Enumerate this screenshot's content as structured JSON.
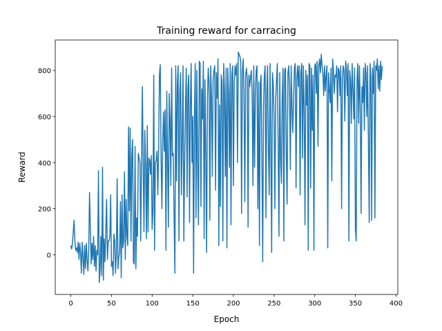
{
  "chart_data": {
    "type": "line",
    "title": "Training reward for carracing",
    "x_label": "Epoch",
    "y_label": "Reward",
    "color": "#1f77b4",
    "x": [
      0,
      1,
      2,
      3,
      4,
      5,
      6,
      7,
      8,
      9,
      10,
      11,
      12,
      13,
      14,
      15,
      16,
      17,
      18,
      19,
      20,
      21,
      22,
      23,
      24,
      25,
      26,
      27,
      28,
      29,
      30,
      31,
      32,
      33,
      34,
      35,
      36,
      37,
      38,
      39,
      40,
      41,
      42,
      43,
      44,
      45,
      46,
      47,
      48,
      49,
      50,
      51,
      52,
      53,
      54,
      55,
      56,
      57,
      58,
      59,
      60,
      61,
      62,
      63,
      64,
      65,
      66,
      67,
      68,
      69,
      70,
      71,
      72,
      73,
      74,
      75,
      76,
      77,
      78,
      79,
      80,
      81,
      82,
      83,
      84,
      85,
      86,
      87,
      88,
      89,
      90,
      91,
      92,
      93,
      94,
      95,
      96,
      97,
      98,
      99,
      100,
      101,
      102,
      103,
      104,
      105,
      106,
      107,
      108,
      109,
      110,
      111,
      112,
      113,
      114,
      115,
      116,
      117,
      118,
      119,
      120,
      121,
      122,
      123,
      124,
      125,
      126,
      127,
      128,
      129,
      130,
      131,
      132,
      133,
      134,
      135,
      136,
      137,
      138,
      139,
      140,
      141,
      142,
      143,
      144,
      145,
      146,
      147,
      148,
      149,
      150,
      151,
      152,
      153,
      154,
      155,
      156,
      157,
      158,
      159,
      160,
      161,
      162,
      163,
      164,
      165,
      166,
      167,
      168,
      169,
      170,
      171,
      172,
      173,
      174,
      175,
      176,
      177,
      178,
      179,
      180,
      181,
      182,
      183,
      184,
      185,
      186,
      187,
      188,
      189,
      190,
      191,
      192,
      193,
      194,
      195,
      196,
      197,
      198,
      199,
      200,
      201,
      202,
      203,
      204,
      205,
      206,
      207,
      208,
      209,
      210,
      211,
      212,
      213,
      214,
      215,
      216,
      217,
      218,
      219,
      220,
      221,
      222,
      223,
      224,
      225,
      226,
      227,
      228,
      229,
      230,
      231,
      232,
      233,
      234,
      235,
      236,
      237,
      238,
      239,
      240,
      241,
      242,
      243,
      244,
      245,
      246,
      247,
      248,
      249,
      250,
      251,
      252,
      253,
      254,
      255,
      256,
      257,
      258,
      259,
      260,
      261,
      262,
      263,
      264,
      265,
      266,
      267,
      268,
      269,
      270,
      271,
      272,
      273,
      274,
      275,
      276,
      277,
      278,
      279,
      280,
      281,
      282,
      283,
      284,
      285,
      286,
      287,
      288,
      289,
      290,
      291,
      292,
      293,
      294,
      295,
      296,
      297,
      298,
      299,
      300,
      301,
      302,
      303,
      304,
      305,
      306,
      307,
      308,
      309,
      310,
      311,
      312,
      313,
      314,
      315,
      316,
      317,
      318,
      319,
      320,
      321,
      322,
      323,
      324,
      325,
      326,
      327,
      328,
      329,
      330,
      331,
      332,
      333,
      334,
      335,
      336,
      337,
      338,
      339,
      340,
      341,
      342,
      343,
      344,
      345,
      346,
      347,
      348,
      349,
      350,
      351,
      352,
      353,
      354,
      355,
      356,
      357,
      358,
      359,
      360,
      361,
      362,
      363,
      364,
      365,
      366,
      367,
      368,
      369,
      370,
      371,
      372,
      373,
      374,
      375,
      376,
      377,
      378,
      379,
      380,
      381,
      382,
      383
    ],
    "values": [
      40,
      25,
      50,
      100,
      150,
      60,
      20,
      30,
      10,
      55,
      -20,
      50,
      10,
      -80,
      55,
      -10,
      -85,
      40,
      -60,
      50,
      -20,
      -70,
      10,
      270,
      120,
      -40,
      50,
      -20,
      80,
      -50,
      40,
      -70,
      20,
      0,
      365,
      -120,
      -60,
      80,
      -90,
      380,
      -110,
      70,
      -30,
      100,
      240,
      -20,
      60,
      60,
      80,
      260,
      -50,
      -30,
      -90,
      90,
      60,
      -80,
      0,
      330,
      -60,
      -10,
      10,
      230,
      -100,
      260,
      30,
      60,
      360,
      -20,
      240,
      80,
      40,
      555,
      190,
      550,
      60,
      430,
      500,
      -30,
      -40,
      470,
      -60,
      160,
      80,
      440,
      420,
      400,
      60,
      420,
      730,
      390,
      100,
      540,
      380,
      70,
      560,
      100,
      420,
      410,
      350,
      430,
      110,
      190,
      780,
      20,
      400,
      410,
      450,
      260,
      460,
      780,
      825,
      420,
      200,
      480,
      620,
      450,
      630,
      20,
      710,
      420,
      120,
      700,
      580,
      300,
      810,
      430,
      440,
      160,
      -80,
      820,
      320,
      740,
      820,
      60,
      700,
      790,
      260,
      490,
      820,
      60,
      410,
      640,
      810,
      250,
      720,
      780,
      140,
      640,
      830,
      400,
      600,
      -80,
      590,
      830,
      160,
      800,
      380,
      130,
      840,
      830,
      210,
      720,
      590,
      840,
      70,
      760,
      440,
      10,
      680,
      810,
      740,
      150,
      820,
      690,
      340,
      760,
      800,
      820,
      280,
      790,
      680,
      850,
      40,
      650,
      210,
      780,
      750,
      60,
      830,
      710,
      340,
      810,
      30,
      810,
      700,
      380,
      830,
      130,
      780,
      820,
      300,
      740,
      820,
      780,
      830,
      400,
      880,
      870,
      860,
      840,
      180,
      790,
      850,
      700,
      230,
      780,
      810,
      760,
      120,
      780,
      730,
      770,
      800,
      700,
      300,
      820,
      380,
      700,
      800,
      820,
      200,
      750,
      40,
      740,
      780,
      430,
      -30,
      640,
      780,
      820,
      160,
      710,
      820,
      460,
      260,
      830,
      500,
      10,
      790,
      740,
      580,
      200,
      680,
      760,
      830,
      470,
      80,
      790,
      420,
      310,
      690,
      810,
      60,
      800,
      810,
      450,
      220,
      790,
      820,
      720,
      370,
      820,
      640,
      530,
      680,
      810,
      830,
      290,
      770,
      820,
      730,
      820,
      260,
      790,
      830,
      420,
      820,
      640,
      130,
      800,
      650,
      780,
      20,
      830,
      820,
      290,
      810,
      540,
      780,
      20,
      820,
      830,
      700,
      840,
      470,
      820,
      850,
      790,
      870,
      820,
      790,
      690,
      820,
      710,
      780,
      820,
      30,
      790,
      720,
      660,
      810,
      320,
      850,
      800,
      700,
      780,
      770,
      820,
      620,
      810,
      800,
      690,
      820,
      200,
      760,
      820,
      800,
      580,
      840,
      810,
      690,
      830,
      60,
      800,
      760,
      570,
      830,
      720,
      590,
      810,
      110,
      60,
      760,
      830,
      570,
      820,
      640,
      180,
      730,
      660,
      810,
      540,
      830,
      790,
      600,
      820,
      480,
      140,
      830,
      770,
      150,
      810,
      700,
      840,
      160,
      820,
      800,
      850,
      720,
      820,
      710,
      840,
      760,
      820
    ],
    "xlim": [
      -19.15,
      402.15
    ],
    "xticks": [
      0,
      50,
      100,
      150,
      200,
      250,
      300,
      350,
      400
    ],
    "ylim": [
      -172,
      932
    ],
    "yticks": [
      0,
      200,
      400,
      600,
      800
    ],
    "grid": false
  }
}
